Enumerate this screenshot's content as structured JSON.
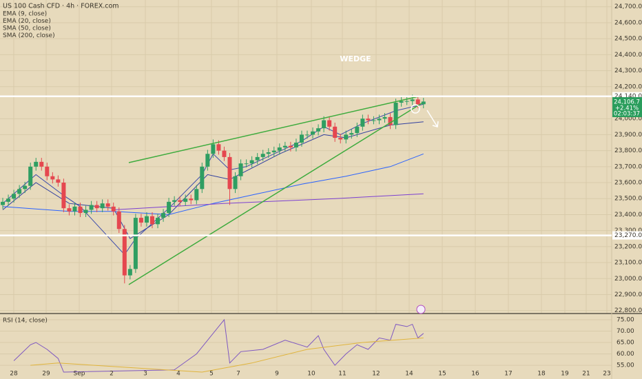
{
  "title": "US 100 Cash CFD · 4h · FOREX.com",
  "annotation": "WEDGE",
  "price_tag": {
    "price": {
      "value": 24106.7,
      "label": "24,106.7"
    },
    "change": "+2.41%",
    "countdown": "02:03:37"
  },
  "date_labels": [
    "28",
    "29",
    "Sep",
    "2",
    "3",
    "4",
    "5",
    "7",
    "9",
    "10",
    "11",
    "12",
    "14",
    "15",
    "16",
    "17",
    "18",
    "19",
    "21",
    "23"
  ],
  "chart_data": [
    {
      "type": "candlestick",
      "up_color": "#2f9e62",
      "down_color": "#e5474f",
      "ylim": [
        22790,
        24742
      ],
      "xlim": [
        -0.5,
        110
      ],
      "open": [
        23460,
        23480,
        23500,
        23530,
        23560,
        23580,
        23700,
        23730,
        23700,
        23640,
        23620,
        23600,
        23440,
        23420,
        23450,
        23410,
        23430,
        23460,
        23440,
        23470,
        23450,
        23420,
        23310,
        23020,
        23060,
        23380,
        23350,
        23390,
        23340,
        23380,
        23410,
        23480,
        23490,
        23480,
        23500,
        23490,
        23560,
        23700,
        23780,
        23840,
        23800,
        23760,
        23560,
        23640,
        23720,
        23720,
        23740,
        23760,
        23780,
        23790,
        23800,
        23820,
        23830,
        23820,
        23850,
        23900,
        23900,
        23920,
        23940,
        23990,
        23950,
        23880,
        23870,
        23900,
        23910,
        23950,
        24000,
        23990,
        23990,
        24000,
        24010,
        23960,
        24100,
        24110,
        24110,
        24120,
        24090
      ],
      "high": [
        23505,
        23525,
        23555,
        23585,
        23605,
        23725,
        23755,
        23755,
        23725,
        23665,
        23645,
        23625,
        23465,
        23475,
        23475,
        23455,
        23485,
        23485,
        23495,
        23495,
        23475,
        23445,
        23335,
        23085,
        23405,
        23405,
        23415,
        23415,
        23405,
        23435,
        23505,
        23515,
        23515,
        23525,
        23525,
        23585,
        23725,
        23805,
        23870,
        23865,
        23825,
        23785,
        23665,
        23745,
        23745,
        23765,
        23785,
        23805,
        23815,
        23825,
        23845,
        23855,
        23855,
        23875,
        23925,
        23925,
        23945,
        23965,
        24015,
        24015,
        23975,
        23905,
        23925,
        23935,
        23975,
        24025,
        24025,
        24015,
        24025,
        24035,
        24035,
        24125,
        24135,
        24135,
        24150,
        24145,
        24130
      ],
      "low": [
        23435,
        23455,
        23475,
        23505,
        23535,
        23555,
        23675,
        23675,
        23615,
        23595,
        23575,
        23415,
        23395,
        23395,
        23385,
        23385,
        23405,
        23415,
        23415,
        23425,
        23395,
        23285,
        22970,
        22995,
        23035,
        23325,
        23325,
        23315,
        23315,
        23355,
        23385,
        23455,
        23455,
        23455,
        23465,
        23465,
        23535,
        23675,
        23755,
        23775,
        23735,
        23460,
        23535,
        23615,
        23695,
        23695,
        23715,
        23735,
        23755,
        23765,
        23775,
        23795,
        23795,
        23795,
        23825,
        23875,
        23875,
        23895,
        23915,
        23925,
        23855,
        23845,
        23845,
        23875,
        23885,
        23925,
        23965,
        23965,
        23965,
        23975,
        23935,
        23935,
        24075,
        24085,
        24085,
        24065,
        24065
      ],
      "close": [
        23480,
        23500,
        23530,
        23560,
        23580,
        23700,
        23730,
        23700,
        23640,
        23620,
        23600,
        23440,
        23420,
        23450,
        23410,
        23430,
        23460,
        23440,
        23470,
        23450,
        23420,
        23310,
        23020,
        23060,
        23380,
        23350,
        23390,
        23340,
        23380,
        23410,
        23480,
        23490,
        23480,
        23500,
        23490,
        23560,
        23700,
        23780,
        23840,
        23800,
        23760,
        23560,
        23640,
        23720,
        23720,
        23740,
        23760,
        23780,
        23790,
        23800,
        23820,
        23830,
        23820,
        23850,
        23900,
        23900,
        23920,
        23940,
        23990,
        23950,
        23880,
        23870,
        23900,
        23910,
        23950,
        24000,
        23990,
        23990,
        24000,
        24010,
        23960,
        24100,
        24110,
        24110,
        24120,
        24090,
        24107
      ],
      "yticks": [
        {
          "value": 22800,
          "label": "22,800.0"
        },
        {
          "value": 22900,
          "label": "22,900.0"
        },
        {
          "value": 23000,
          "label": "23,000.0"
        },
        {
          "value": 23100,
          "label": "23,100.0"
        },
        {
          "value": 23200,
          "label": "23,200.0"
        },
        {
          "value": 23300,
          "label": "23,300.0"
        },
        {
          "value": 23400,
          "label": "23,400.0"
        },
        {
          "value": 23500,
          "label": "23,500.0"
        },
        {
          "value": 23600,
          "label": "23,600.0"
        },
        {
          "value": 23700,
          "label": "23,700.0"
        },
        {
          "value": 23800,
          "label": "23,800.0"
        },
        {
          "value": 23900,
          "label": "23,900.0"
        },
        {
          "value": 24000,
          "label": "24,000.0"
        },
        {
          "value": 24200,
          "label": "24,200.0"
        },
        {
          "value": 24300,
          "label": "24,300.0"
        },
        {
          "value": 24400,
          "label": "24,400.0"
        },
        {
          "value": 24500,
          "label": "24,500.0"
        },
        {
          "value": 24600,
          "label": "24,600.0"
        },
        {
          "value": 24700,
          "label": "24,700.0"
        }
      ],
      "levels": [
        {
          "value": 24140,
          "label": "24,140.0"
        },
        {
          "value": 23270,
          "label": "23,270.0"
        }
      ],
      "series": [
        {
          "name": "EMA (9, close)",
          "color": "#3949ab",
          "x": [
            0,
            6,
            11,
            14,
            22,
            24,
            30,
            36,
            38,
            41,
            44,
            54,
            58,
            61,
            65,
            71,
            76
          ],
          "values": [
            23470,
            23650,
            23520,
            23450,
            23150,
            23250,
            23440,
            23650,
            23780,
            23680,
            23700,
            23860,
            23950,
            23900,
            23970,
            24050,
            24090
          ]
        },
        {
          "name": "EMA (20, close)",
          "color": "#303f9f",
          "x": [
            0,
            6,
            12,
            20,
            23,
            30,
            37,
            41,
            50,
            58,
            62,
            70,
            76
          ],
          "values": [
            23430,
            23600,
            23470,
            23440,
            23250,
            23400,
            23650,
            23620,
            23780,
            23900,
            23880,
            23960,
            23980
          ]
        },
        {
          "name": "SMA (50, close)",
          "color": "#2962ff",
          "x": [
            0,
            12,
            20,
            30,
            38,
            46,
            54,
            62,
            70,
            76
          ],
          "values": [
            23450,
            23420,
            23420,
            23400,
            23470,
            23530,
            23590,
            23640,
            23700,
            23780
          ]
        },
        {
          "name": "SMA (200, close)",
          "color": "#7b3fd1",
          "x": [
            20,
            40,
            60,
            76
          ],
          "values": [
            23430,
            23470,
            23500,
            23530
          ]
        }
      ]
    },
    {
      "type": "line",
      "title": "RSI (14, close)",
      "ylim": [
        50.5,
        76.8
      ],
      "xlim": [
        -0.5,
        110
      ],
      "yticks": [
        {
          "value": 75,
          "label": "75.00"
        },
        {
          "value": 70,
          "label": "70.00"
        },
        {
          "value": 65,
          "label": "65.00"
        },
        {
          "value": 60,
          "label": "60.00"
        },
        {
          "value": 55,
          "label": "55.00"
        }
      ],
      "series": [
        {
          "color": "#7e57c2",
          "x": [
            2,
            5,
            6,
            8,
            10,
            11,
            31,
            35,
            37,
            39,
            40,
            41,
            43,
            47,
            51,
            55,
            57,
            58,
            60,
            62,
            64,
            66,
            68,
            70,
            71,
            73,
            74,
            75,
            76
          ],
          "values": [
            57,
            64,
            65,
            62,
            58,
            52,
            53,
            60,
            66,
            72,
            75,
            56,
            61,
            62,
            66,
            63,
            68,
            62,
            55,
            60,
            64,
            62,
            67,
            66,
            73,
            72,
            73,
            67,
            69
          ]
        },
        {
          "color": "#e0b43c",
          "x": [
            5,
            10,
            36,
            45,
            55,
            65,
            76
          ],
          "values": [
            55,
            56,
            52,
            56,
            62,
            65,
            67
          ]
        }
      ]
    }
  ]
}
